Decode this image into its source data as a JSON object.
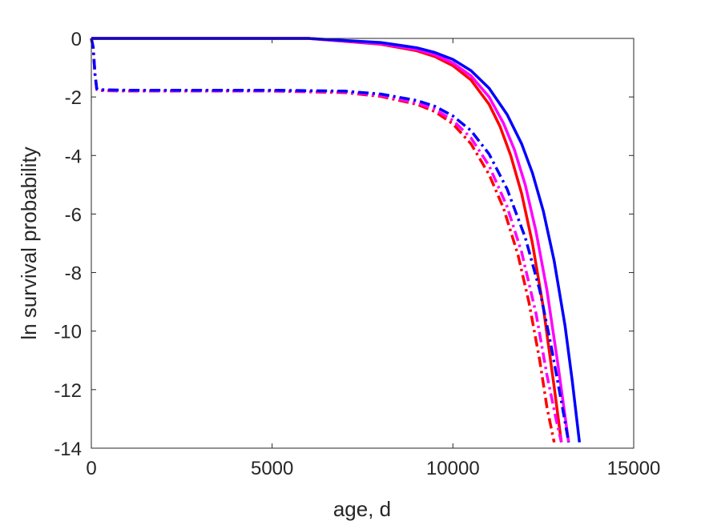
{
  "chart_data": {
    "type": "line",
    "title": "",
    "xlabel": "age, d",
    "ylabel": "ln survival probability",
    "xlim": [
      0,
      15000
    ],
    "ylim": [
      -14,
      0
    ],
    "xticks": [
      0,
      5000,
      10000,
      15000
    ],
    "yticks": [
      0,
      -2,
      -4,
      -6,
      -8,
      -10,
      -12,
      -14
    ],
    "grid": false,
    "legend": "none",
    "series": [
      {
        "style": "solid",
        "color": "#ff0000",
        "points": [
          [
            0,
            0
          ],
          [
            6000,
            0
          ],
          [
            8000,
            -0.2
          ],
          [
            9000,
            -0.42
          ],
          [
            9500,
            -0.62
          ],
          [
            10000,
            -0.93
          ],
          [
            10500,
            -1.42
          ],
          [
            11000,
            -2.25
          ],
          [
            11300,
            -3.0
          ],
          [
            11600,
            -4.0
          ],
          [
            11900,
            -5.3
          ],
          [
            12200,
            -7.0
          ],
          [
            12500,
            -9.2
          ],
          [
            12800,
            -11.9
          ],
          [
            13000,
            -13.8
          ]
        ]
      },
      {
        "style": "solid",
        "color": "#ff00ff",
        "points": [
          [
            0,
            0
          ],
          [
            6000,
            0
          ],
          [
            8000,
            -0.18
          ],
          [
            9000,
            -0.38
          ],
          [
            9500,
            -0.56
          ],
          [
            10000,
            -0.84
          ],
          [
            10500,
            -1.28
          ],
          [
            11000,
            -2.0
          ],
          [
            11400,
            -2.9
          ],
          [
            11700,
            -3.8
          ],
          [
            12000,
            -5.0
          ],
          [
            12300,
            -6.6
          ],
          [
            12600,
            -8.6
          ],
          [
            12900,
            -11.1
          ],
          [
            13200,
            -13.8
          ]
        ]
      },
      {
        "style": "solid",
        "color": "#0000ff",
        "points": [
          [
            0,
            0
          ],
          [
            6000,
            0
          ],
          [
            8000,
            -0.14
          ],
          [
            9000,
            -0.32
          ],
          [
            9500,
            -0.48
          ],
          [
            10000,
            -0.72
          ],
          [
            10500,
            -1.1
          ],
          [
            11000,
            -1.7
          ],
          [
            11500,
            -2.6
          ],
          [
            11900,
            -3.6
          ],
          [
            12200,
            -4.6
          ],
          [
            12500,
            -5.9
          ],
          [
            12800,
            -7.6
          ],
          [
            13100,
            -9.8
          ],
          [
            13300,
            -11.7
          ],
          [
            13500,
            -13.8
          ]
        ]
      },
      {
        "style": "dashdot",
        "color": "#ff0000",
        "points": [
          [
            0,
            0
          ],
          [
            50,
            -0.3
          ],
          [
            100,
            -1.2
          ],
          [
            150,
            -1.75
          ],
          [
            200,
            -1.78
          ],
          [
            1000,
            -1.8
          ],
          [
            5000,
            -1.8
          ],
          [
            7000,
            -1.85
          ],
          [
            8000,
            -1.98
          ],
          [
            9000,
            -2.25
          ],
          [
            9500,
            -2.5
          ],
          [
            10000,
            -2.92
          ],
          [
            10500,
            -3.6
          ],
          [
            11000,
            -4.65
          ],
          [
            11400,
            -5.8
          ],
          [
            11800,
            -7.4
          ],
          [
            12100,
            -9.0
          ],
          [
            12400,
            -11.0
          ],
          [
            12600,
            -12.6
          ],
          [
            12800,
            -13.8
          ]
        ]
      },
      {
        "style": "dashdot",
        "color": "#ff00ff",
        "points": [
          [
            0,
            0
          ],
          [
            50,
            -0.3
          ],
          [
            100,
            -1.2
          ],
          [
            150,
            -1.74
          ],
          [
            200,
            -1.77
          ],
          [
            1000,
            -1.79
          ],
          [
            5000,
            -1.79
          ],
          [
            7000,
            -1.83
          ],
          [
            8000,
            -1.95
          ],
          [
            9000,
            -2.2
          ],
          [
            9500,
            -2.42
          ],
          [
            10000,
            -2.8
          ],
          [
            10500,
            -3.4
          ],
          [
            11000,
            -4.35
          ],
          [
            11500,
            -5.75
          ],
          [
            11900,
            -7.3
          ],
          [
            12300,
            -9.4
          ],
          [
            12600,
            -11.5
          ],
          [
            12850,
            -13.0
          ],
          [
            13000,
            -13.8
          ]
        ]
      },
      {
        "style": "dashdot",
        "color": "#0000ff",
        "points": [
          [
            0,
            0
          ],
          [
            50,
            -0.3
          ],
          [
            100,
            -1.2
          ],
          [
            150,
            -1.72
          ],
          [
            200,
            -1.75
          ],
          [
            1000,
            -1.77
          ],
          [
            5000,
            -1.77
          ],
          [
            7000,
            -1.8
          ],
          [
            8000,
            -1.9
          ],
          [
            9000,
            -2.12
          ],
          [
            9500,
            -2.32
          ],
          [
            10000,
            -2.65
          ],
          [
            10500,
            -3.15
          ],
          [
            11000,
            -3.95
          ],
          [
            11500,
            -5.15
          ],
          [
            12000,
            -6.8
          ],
          [
            12400,
            -8.6
          ],
          [
            12700,
            -10.4
          ],
          [
            13000,
            -12.4
          ],
          [
            13200,
            -13.8
          ]
        ]
      }
    ]
  }
}
